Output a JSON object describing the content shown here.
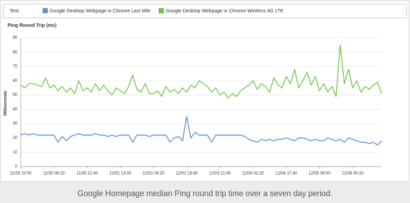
{
  "chart_data": {
    "type": "line",
    "legend_title": "Test:",
    "title": "Ping Round Trip (ms)",
    "y_label": "Milliseconds",
    "caption": "Google Homepage median Ping round trip time over a seven day period.",
    "categories": [
      "11/29 15:00",
      null,
      null,
      null,
      null,
      null,
      null,
      null,
      "11/30 06:20",
      null,
      null,
      null,
      null,
      null,
      null,
      null,
      "11/30 21:40",
      null,
      null,
      null,
      null,
      null,
      null,
      null,
      "12/01 13:00",
      null,
      null,
      null,
      null,
      null,
      null,
      null,
      "12/02 04:20",
      null,
      null,
      null,
      null,
      null,
      null,
      null,
      "12/02 19:40",
      null,
      null,
      null,
      null,
      null,
      null,
      null,
      "12/03 11:00",
      null,
      null,
      null,
      null,
      null,
      null,
      null,
      "12/04 02:20",
      null,
      null,
      null,
      null,
      null,
      null,
      null,
      "12/04 17:40",
      null,
      null,
      null,
      null,
      null,
      null,
      null,
      "12/05 09:00",
      null,
      null,
      null,
      null,
      null,
      null,
      null,
      "12/06 00:20",
      null,
      null,
      null,
      null,
      null,
      null,
      null
    ],
    "series": [
      {
        "name": "Google Desktop Webpage in Chrome Last Mile",
        "color": "#5b8fd0",
        "values": [
          22,
          23,
          22,
          23,
          22,
          22,
          22,
          22,
          22,
          17,
          21,
          18,
          21,
          22,
          23,
          22,
          22,
          22,
          23,
          22,
          22,
          21,
          22,
          21,
          22,
          22,
          22,
          17,
          22,
          22,
          22,
          21,
          22,
          22,
          22,
          22,
          17,
          20,
          21,
          18,
          35,
          20,
          24,
          22,
          22,
          22,
          17,
          22,
          22,
          22,
          22,
          22,
          22,
          22,
          21,
          19,
          18,
          17,
          19,
          18,
          19,
          18,
          19,
          19,
          20,
          19,
          18,
          20,
          20,
          19,
          18,
          19,
          18,
          18,
          20,
          19,
          18,
          19,
          17,
          20,
          19,
          18,
          17,
          17,
          16,
          17,
          15,
          18
        ]
      },
      {
        "name": "Google Desktop Webpage in Chrome Wireless 4G LTE",
        "color": "#72c545",
        "values": [
          57,
          55,
          58,
          58,
          57,
          56,
          62,
          55,
          57,
          53,
          56,
          52,
          55,
          51,
          60,
          53,
          55,
          52,
          58,
          53,
          57,
          53,
          50,
          55,
          53,
          51,
          56,
          64,
          54,
          52,
          58,
          51,
          51,
          53,
          49,
          56,
          52,
          54,
          51,
          55,
          52,
          57,
          55,
          60,
          58,
          56,
          52,
          55,
          50,
          52,
          48,
          51,
          49,
          53,
          55,
          57,
          60,
          54,
          58,
          56,
          52,
          62,
          57,
          55,
          63,
          58,
          68,
          55,
          60,
          66,
          57,
          63,
          53,
          58,
          52,
          56,
          49,
          85,
          58,
          68,
          55,
          60,
          52,
          56,
          54,
          57,
          59,
          51
        ]
      }
    ],
    "ylim": [
      0,
      90
    ],
    "yticks": [
      0,
      10,
      20,
      30,
      40,
      50,
      60,
      70,
      80,
      90
    ],
    "grid": true
  }
}
